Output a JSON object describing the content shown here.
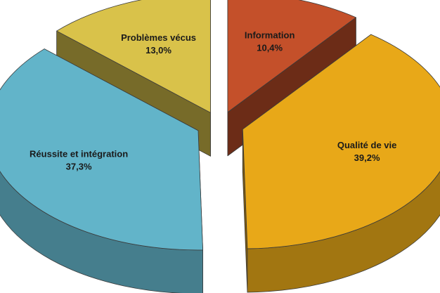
{
  "chart_data": {
    "type": "pie",
    "three_d": true,
    "exploded": true,
    "categories": [
      "Information",
      "Qualité de vie",
      "Réussite et intégration",
      "Problèmes vécus"
    ],
    "values": [
      10.4,
      39.2,
      37.3,
      13.0
    ],
    "value_labels": [
      "10,4%",
      "39,2%",
      "37,3%",
      "13,0%"
    ],
    "colors": [
      "#c4502a",
      "#e8a818",
      "#62b4c9",
      "#d9c24a"
    ]
  }
}
